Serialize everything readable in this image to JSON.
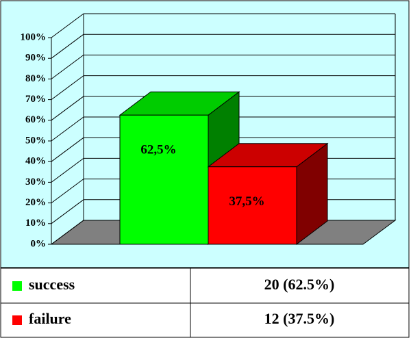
{
  "chart_data": {
    "type": "bar3d",
    "series": [
      {
        "name": "success",
        "color": "#00ff00",
        "side_color": "#008000",
        "top_color": "#00cc00",
        "values": [
          62.5
        ],
        "value_labels": [
          "62,5%"
        ]
      },
      {
        "name": "failure",
        "color": "#ff0000",
        "side_color": "#800000",
        "top_color": "#cc0000",
        "values": [
          37.5
        ],
        "value_labels": [
          "37,5%"
        ]
      }
    ],
    "ylim": [
      0,
      100
    ],
    "yticks": [
      {
        "value": 0,
        "label": "0%"
      },
      {
        "value": 10,
        "label": "10%"
      },
      {
        "value": 20,
        "label": "20%"
      },
      {
        "value": 30,
        "label": "30%"
      },
      {
        "value": 40,
        "label": "40%"
      },
      {
        "value": 50,
        "label": "50%"
      },
      {
        "value": 60,
        "label": "60%"
      },
      {
        "value": 70,
        "label": "70%"
      },
      {
        "value": 80,
        "label": "80%"
      },
      {
        "value": 90,
        "label": "90%"
      },
      {
        "value": 100,
        "label": "100%"
      }
    ],
    "grid": true,
    "data_table": [
      "20 (62.5%)",
      "12 (37.5%)"
    ]
  }
}
